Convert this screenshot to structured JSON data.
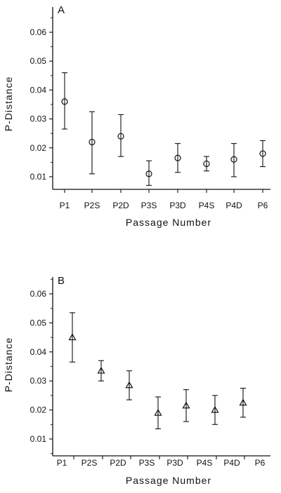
{
  "chart_data": [
    {
      "type": "scatter",
      "panel_label": "A",
      "marker": "circle",
      "xlabel": "Passage Number",
      "ylabel": "P-Distance",
      "categories": [
        "P1",
        "P2S",
        "P2D",
        "P3S",
        "P3D",
        "P4S",
        "P4D",
        "P6"
      ],
      "yticks": [
        "0.01",
        "0.02",
        "0.03",
        "0.04",
        "0.05",
        "0.06"
      ],
      "ylim": [
        0.005,
        0.065
      ],
      "points": [
        {
          "x": "P1",
          "y": 0.036,
          "low": 0.0265,
          "high": 0.046
        },
        {
          "x": "P2S",
          "y": 0.022,
          "low": 0.011,
          "high": 0.0325
        },
        {
          "x": "P2D",
          "y": 0.024,
          "low": 0.017,
          "high": 0.0315
        },
        {
          "x": "P3S",
          "y": 0.011,
          "low": 0.007,
          "high": 0.0155
        },
        {
          "x": "P3D",
          "y": 0.0165,
          "low": 0.0115,
          "high": 0.0215
        },
        {
          "x": "P4S",
          "y": 0.0145,
          "low": 0.012,
          "high": 0.017
        },
        {
          "x": "P4D",
          "y": 0.016,
          "low": 0.01,
          "high": 0.0215
        },
        {
          "x": "P6",
          "y": 0.018,
          "low": 0.0135,
          "high": 0.0225
        }
      ]
    },
    {
      "type": "scatter",
      "panel_label": "B",
      "marker": "triangle",
      "xlabel": "Passage Number",
      "ylabel": "P-Distance",
      "categories": [
        "P1",
        "P2S",
        "P2D",
        "P3S",
        "P3D",
        "P4S",
        "P4D",
        "P6"
      ],
      "yticks": [
        "0.01",
        "0.02",
        "0.03",
        "0.04",
        "0.05",
        "0.06"
      ],
      "ylim": [
        0.005,
        0.065
      ],
      "points": [
        {
          "x": "P1",
          "y": 0.045,
          "low": 0.0365,
          "high": 0.0535
        },
        {
          "x": "P2S",
          "y": 0.0335,
          "low": 0.03,
          "high": 0.037
        },
        {
          "x": "P2D",
          "y": 0.0285,
          "low": 0.0235,
          "high": 0.0335
        },
        {
          "x": "P3S",
          "y": 0.019,
          "low": 0.0135,
          "high": 0.0245
        },
        {
          "x": "P3D",
          "y": 0.0215,
          "low": 0.016,
          "high": 0.027
        },
        {
          "x": "P4S",
          "y": 0.02,
          "low": 0.015,
          "high": 0.025
        },
        {
          "x": "P4D",
          "y": 0.0225,
          "low": 0.0175,
          "high": 0.0275
        }
      ]
    }
  ]
}
